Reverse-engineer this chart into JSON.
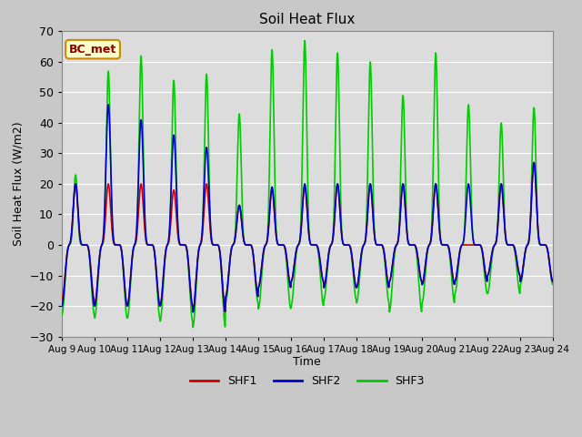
{
  "title": "Soil Heat Flux",
  "xlabel": "Time",
  "ylabel": "Soil Heat Flux (W/m2)",
  "ylim": [
    -30,
    70
  ],
  "yticks": [
    -30,
    -20,
    -10,
    0,
    10,
    20,
    30,
    40,
    50,
    60,
    70
  ],
  "x_tick_labels": [
    "Aug 9",
    "Aug 10",
    "Aug 11",
    "Aug 12",
    "Aug 13",
    "Aug 14",
    "Aug 15",
    "Aug 16",
    "Aug 17",
    "Aug 18",
    "Aug 19",
    "Aug 20",
    "Aug 21",
    "Aug 22",
    "Aug 23",
    "Aug 24"
  ],
  "colors": {
    "SHF1": "#cc0000",
    "SHF2": "#0000cc",
    "SHF3": "#00cc00",
    "background": "#dcdcdc",
    "fig_bg": "#c8c8c8",
    "grid": "#ffffff"
  },
  "site_label": "BC_met",
  "site_label_bg": "#ffffcc",
  "site_label_border": "#cc8800",
  "legend_entries": [
    "SHF1",
    "SHF2",
    "SHF3"
  ],
  "shf1_peaks": [
    20,
    20,
    20,
    18,
    20,
    13,
    18,
    19,
    20,
    20,
    20,
    20,
    0,
    20,
    27
  ],
  "shf2_peaks": [
    20,
    46,
    41,
    36,
    32,
    13,
    19,
    20,
    20,
    20,
    20,
    20,
    20,
    20,
    27
  ],
  "shf3_peaks": [
    23,
    57,
    62,
    54,
    56,
    43,
    64,
    67,
    63,
    60,
    49,
    63,
    46,
    40,
    45
  ],
  "shf1_nights": [
    -18,
    -20,
    -20,
    -20,
    -22,
    -17,
    -14,
    -12,
    -14,
    -14,
    -12,
    -13,
    -12,
    -10,
    -12
  ],
  "shf2_nights": [
    -20,
    -20,
    -20,
    -20,
    -22,
    -17,
    -14,
    -12,
    -14,
    -14,
    -12,
    -13,
    -12,
    -10,
    -12
  ],
  "shf3_nights": [
    -23,
    -24,
    -24,
    -25,
    -27,
    -19,
    -21,
    -20,
    -18,
    -19,
    -22,
    -19,
    -16,
    -16,
    -13
  ],
  "pts_per_day": 144
}
